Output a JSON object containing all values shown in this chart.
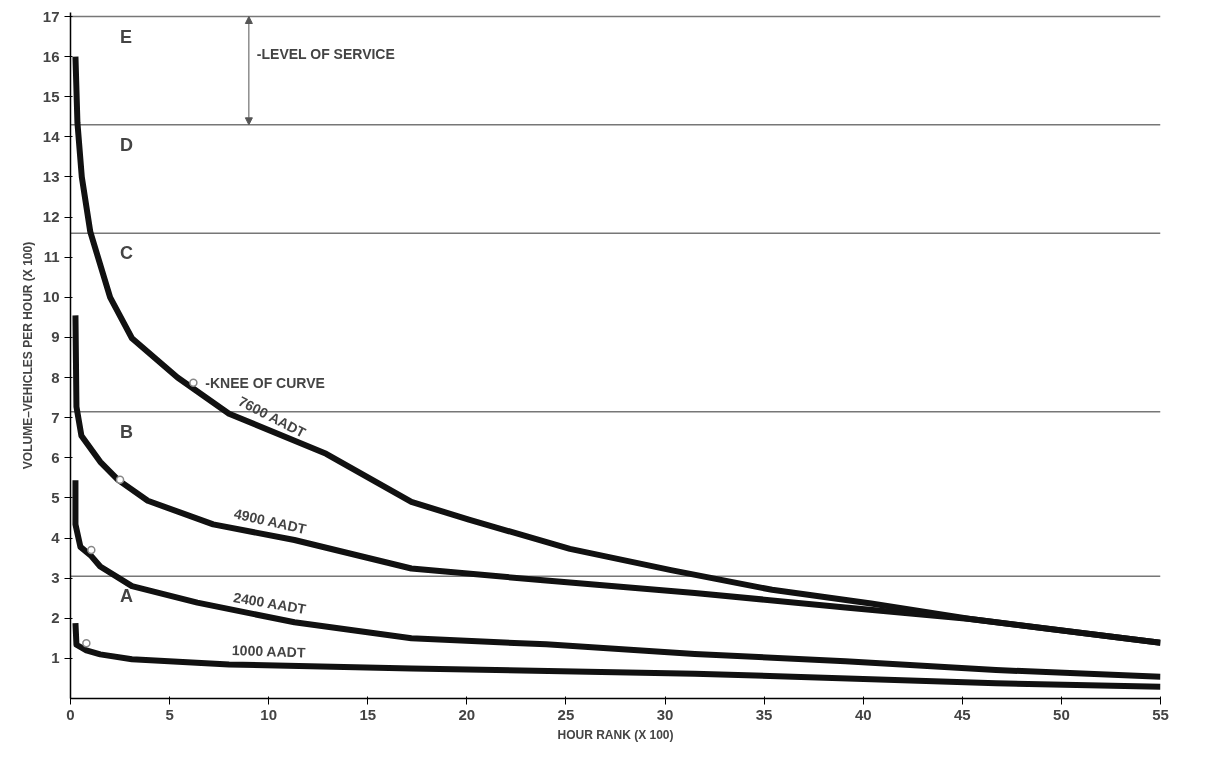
{
  "chart_data": {
    "type": "line",
    "xlabel": "HOUR RANK (X 100)",
    "ylabel": "VOLUME–VEHICLES PER HOUR (X 100)",
    "xlim": [
      0,
      55
    ],
    "ylim": [
      0,
      17.1
    ],
    "xticks": [
      0,
      5,
      10,
      15,
      20,
      25,
      30,
      35,
      40,
      45,
      50,
      55
    ],
    "yticks": [
      1,
      2,
      3,
      4,
      5,
      6,
      7,
      8,
      9,
      10,
      11,
      12,
      13,
      14,
      15,
      16,
      17
    ],
    "grid": false,
    "line_style": "solid",
    "series": [
      {
        "name": "7600 AADT",
        "color": "#111111",
        "x": [
          0.25,
          0.35,
          0.57,
          1.0,
          2.0,
          3.1,
          5.4,
          8.0,
          12.9,
          17.2,
          20.1,
          25.2,
          30.3,
          35.4,
          40.4,
          45.4,
          55
        ],
        "values": [
          16.0,
          14.35,
          13.0,
          11.63,
          10.0,
          8.98,
          8.0,
          7.1,
          6.1,
          4.9,
          4.46,
          3.73,
          3.2,
          2.71,
          2.37,
          1.98,
          1.39
        ]
      },
      {
        "name": "4900 AADT",
        "color": "#111111",
        "x": [
          0.25,
          0.3,
          0.55,
          1.5,
          2.4,
          3.9,
          7.2,
          11.3,
          17.2,
          24.0,
          31.5,
          39.1,
          45.4,
          55
        ],
        "values": [
          9.55,
          7.27,
          6.55,
          5.9,
          5.45,
          4.93,
          4.34,
          3.95,
          3.24,
          2.94,
          2.63,
          2.27,
          1.98,
          1.39
        ]
      },
      {
        "name": "2400 AADT",
        "color": "#111111",
        "x": [
          0.25,
          0.25,
          0.5,
          1.05,
          1.5,
          3.1,
          6.4,
          11.3,
          17.2,
          24.0,
          31.5,
          39.1,
          46.7,
          55
        ],
        "values": [
          5.44,
          4.34,
          3.78,
          3.55,
          3.29,
          2.8,
          2.39,
          1.9,
          1.5,
          1.35,
          1.11,
          0.93,
          0.71,
          0.54
        ]
      },
      {
        "name": "1000 AADT",
        "color": "#111111",
        "x": [
          0.25,
          0.3,
          0.8,
          1.5,
          3.1,
          8.0,
          17.2,
          31.5,
          46.7,
          55
        ],
        "values": [
          1.88,
          1.34,
          1.2,
          1.1,
          0.98,
          0.85,
          0.75,
          0.62,
          0.38,
          0.29
        ]
      },
      {
        "type": "scatter",
        "marker": "circle",
        "color": "#888888",
        "x": [
          6.2,
          2.5,
          1.05,
          0.8
        ],
        "values": [
          7.87,
          5.45,
          3.7,
          1.38
        ]
      }
    ],
    "ref_lines": [
      {
        "axis": "y",
        "value": 17,
        "label": "E",
        "color": "#777777"
      },
      {
        "axis": "y",
        "value": 14.3,
        "label": "D",
        "color": "#777777"
      },
      {
        "axis": "y",
        "value": 11.6,
        "label": "C",
        "color": "#777777"
      },
      {
        "axis": "y",
        "value": 7.15,
        "label": "B",
        "color": "#777777"
      },
      {
        "axis": "y",
        "value": 3.05,
        "label": "A",
        "color": "#777777"
      }
    ],
    "annotations": [
      "-LEVEL OF SERVICE",
      {
        "text": "-KNEE OF CURVE",
        "x": 6.4,
        "y": 7.87
      }
    ]
  }
}
